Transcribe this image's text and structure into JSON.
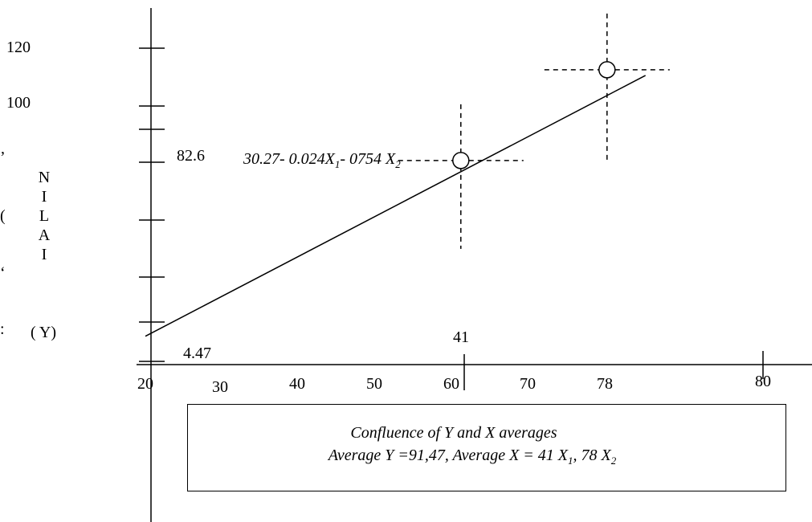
{
  "chart_data": {
    "type": "line",
    "title": "",
    "xlabel": "",
    "ylabel_letters": [
      "N",
      "I",
      "L",
      "A",
      "I"
    ],
    "ylabel_suffix": "( Y)",
    "y_tick_labels": [
      "120",
      "100"
    ],
    "x_tick_labels": [
      "20",
      "30",
      "40",
      "50",
      "60",
      "70",
      "78",
      "80"
    ],
    "axis_annotations": {
      "y_mark": "82.6",
      "y_intercept": "4.47",
      "x_mark": "41"
    },
    "equation": {
      "text_a": "30.27- 0.024X",
      "sub_a": "1",
      "text_b": "- 0754 X",
      "sub_b": "2"
    },
    "regression_line": {
      "from": {
        "x": 20,
        "y": 10
      },
      "to": {
        "x": 85,
        "y": 102
      }
    },
    "average_points": [
      {
        "x": 61,
        "y": 72
      },
      {
        "x": 80,
        "y": 104
      }
    ],
    "legend_box": {
      "line1": "Confluence of Y and X averages",
      "line2_a": "Average Y =91,47, Average X = 41 X",
      "line2_sub1": "1",
      "line2_b": ", 78 X",
      "line2_sub2": "2"
    },
    "edge_fragments": [
      "’",
      "(",
      "‘",
      ":"
    ]
  }
}
